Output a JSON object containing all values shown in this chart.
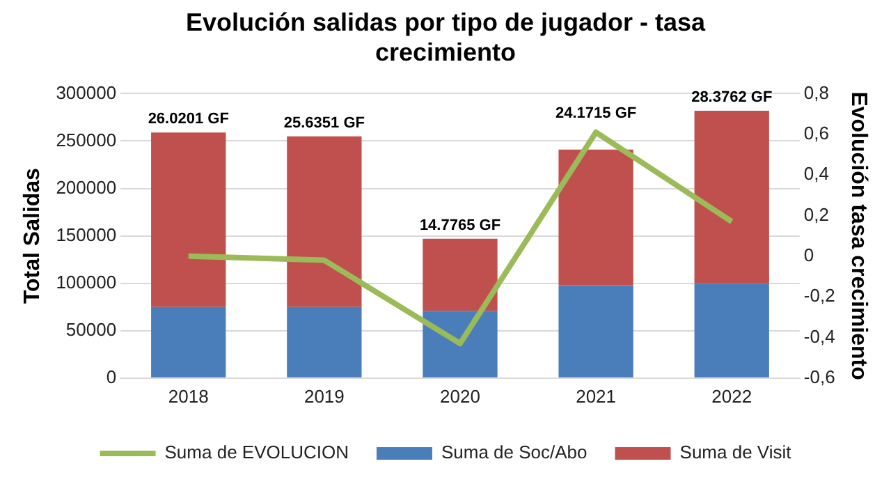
{
  "chart_data": {
    "type": "bar",
    "title": "Evolución salidas por tipo de jugador - tasa crecimiento",
    "ylabel": "Total Salidas",
    "y2label": "Evolución tasa crecimiento",
    "categories": [
      "2018",
      "2019",
      "2020",
      "2021",
      "2022"
    ],
    "stacked": true,
    "series": [
      {
        "name": "Suma de Soc/Abo",
        "color": "#4a7ebb",
        "values": [
          75000,
          75000,
          71000,
          98000,
          100000
        ]
      },
      {
        "name": "Suma de Visit",
        "color": "#c0504d",
        "values": [
          184000,
          180000,
          76000,
          143000,
          182000
        ]
      },
      {
        "name": "Suma de EVOLUCION",
        "type": "line",
        "axis": "y2",
        "color": "#9bbb59",
        "values": [
          0,
          -0.02,
          -0.43,
          0.61,
          0.17
        ]
      }
    ],
    "annotations": [
      {
        "text": "26.0201 GF",
        "x": "2018",
        "y": 259000
      },
      {
        "text": "25.6351 GF",
        "x": "2019",
        "y": 255000
      },
      {
        "text": "14.7765 GF",
        "x": "2020",
        "y": 147000
      },
      {
        "text": "24.1715 GF",
        "x": "2021",
        "y": 241000
      },
      {
        "text": "28.3762 GF",
        "x": "2022",
        "y": 282000
      }
    ],
    "ylim": [
      0,
      300000
    ],
    "yticks": [
      0,
      50000,
      100000,
      150000,
      200000,
      250000,
      300000
    ],
    "y2lim": [
      -0.6,
      0.8
    ],
    "y2ticks": [
      {
        "value": -0.6,
        "label": "-0,6"
      },
      {
        "value": -0.4,
        "label": "-0,4"
      },
      {
        "value": -0.2,
        "label": "-0,2"
      },
      0,
      {
        "value": 0.2,
        "label": "0,2"
      },
      {
        "value": 0.4,
        "label": "0,4"
      },
      {
        "value": 0.6,
        "label": "0,6"
      },
      {
        "value": 0.8,
        "label": "0,8"
      }
    ],
    "grid": "y",
    "legend": "bottom",
    "marker": "none"
  }
}
